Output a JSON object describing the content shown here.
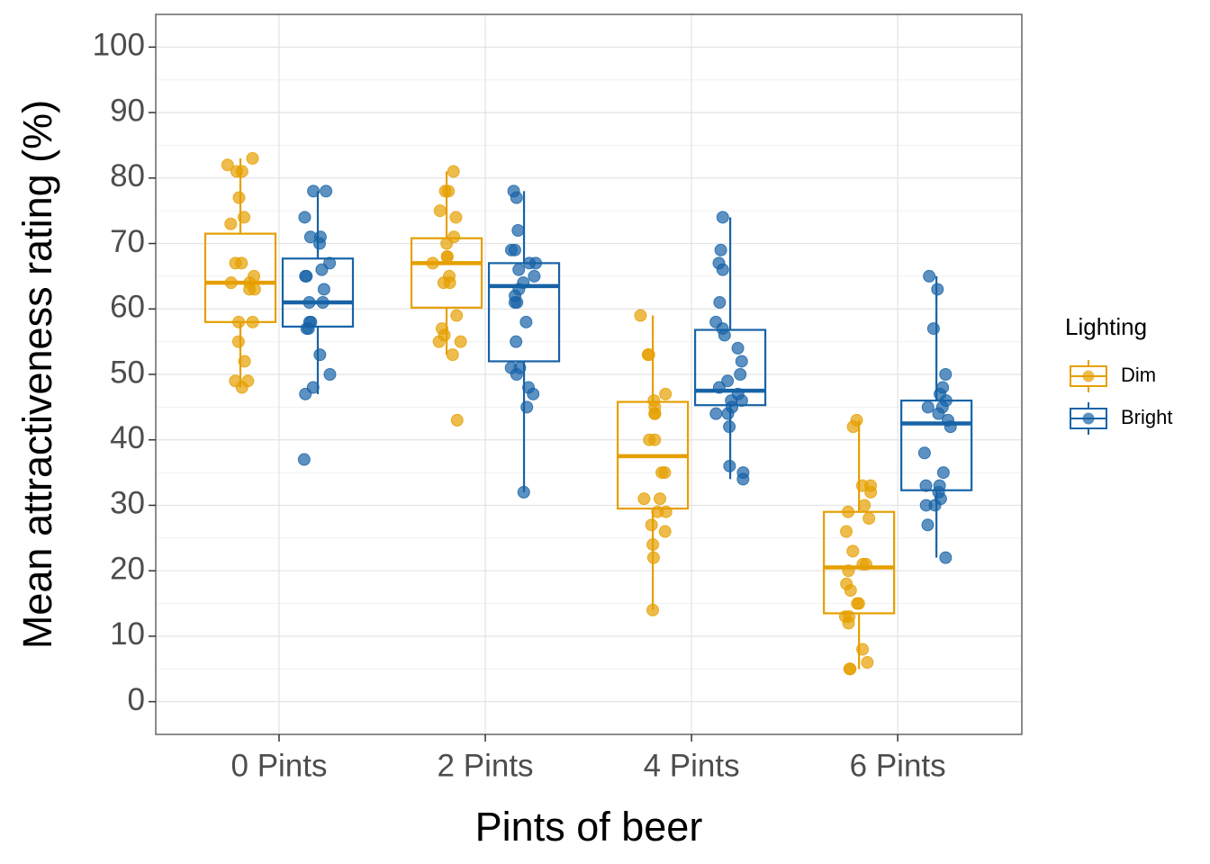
{
  "chart_data": {
    "type": "box",
    "x_label": "Pints of beer",
    "y_label": "Mean attractiveness rating (%)",
    "categories": [
      "0 Pints",
      "2 Pints",
      "4 Pints",
      "6 Pints"
    ],
    "ylim": [
      -5,
      105
    ],
    "yticks": [
      0,
      10,
      20,
      30,
      40,
      50,
      60,
      70,
      80,
      90,
      100
    ],
    "yticks_minor": [
      5,
      15,
      25,
      35,
      45,
      55,
      65,
      75,
      85,
      95
    ],
    "grid": true,
    "legend_title": "Lighting",
    "legend_position": "right",
    "series": [
      {
        "name": "Dim",
        "color": "#E69F00",
        "low": [
          48,
          53,
          14,
          5
        ],
        "q1": [
          58,
          60.2,
          29.5,
          13.5
        ],
        "median": [
          64,
          67,
          37.5,
          20.5
        ],
        "q3": [
          71.5,
          70.8,
          45.8,
          29
        ],
        "high": [
          83,
          81,
          59,
          43
        ],
        "points": [
          [
            83,
            82,
            81,
            81,
            77,
            74,
            73,
            67,
            67,
            65,
            64,
            64,
            63,
            63,
            58,
            58,
            55,
            52,
            49,
            49,
            48
          ],
          [
            81,
            78,
            78,
            75,
            74,
            71,
            70,
            68,
            68,
            67,
            65,
            64,
            64,
            59,
            57,
            56,
            55,
            55,
            53,
            43
          ],
          [
            59,
            53,
            53,
            47,
            46,
            45,
            44,
            44,
            40,
            40,
            35,
            35,
            31,
            31,
            29,
            29,
            27,
            26,
            24,
            22,
            14
          ],
          [
            43,
            42,
            33,
            33,
            32,
            30,
            29,
            28,
            26,
            23,
            21,
            21,
            20,
            18,
            17,
            15,
            15,
            13,
            13,
            12,
            8,
            6,
            5,
            5
          ]
        ]
      },
      {
        "name": "Bright",
        "color": "#1763A6",
        "low": [
          47,
          32,
          34,
          22
        ],
        "q1": [
          57.3,
          52,
          45.3,
          32.3
        ],
        "median": [
          61,
          63.5,
          47.5,
          42.5
        ],
        "q3": [
          67.7,
          67,
          56.8,
          46
        ],
        "high": [
          78,
          78,
          74,
          65
        ],
        "points": [
          [
            78,
            78,
            74,
            71,
            71,
            70,
            67,
            66,
            65,
            65,
            63,
            61,
            61,
            58,
            58,
            57,
            57,
            53,
            50,
            48,
            47,
            37
          ],
          [
            78,
            77,
            72,
            69,
            69,
            67,
            67,
            66,
            65,
            64,
            63,
            62,
            61,
            61,
            58,
            55,
            51,
            51,
            50,
            48,
            47,
            45,
            32
          ],
          [
            74,
            69,
            67,
            66,
            61,
            58,
            57,
            56,
            54,
            52,
            50,
            49,
            48,
            47,
            46,
            46,
            45,
            44,
            44,
            42,
            36,
            35,
            34
          ],
          [
            65,
            63,
            57,
            50,
            48,
            47,
            46,
            45,
            45,
            44,
            43,
            42,
            38,
            35,
            33,
            33,
            32,
            31,
            30,
            30,
            27,
            22
          ]
        ]
      }
    ]
  }
}
